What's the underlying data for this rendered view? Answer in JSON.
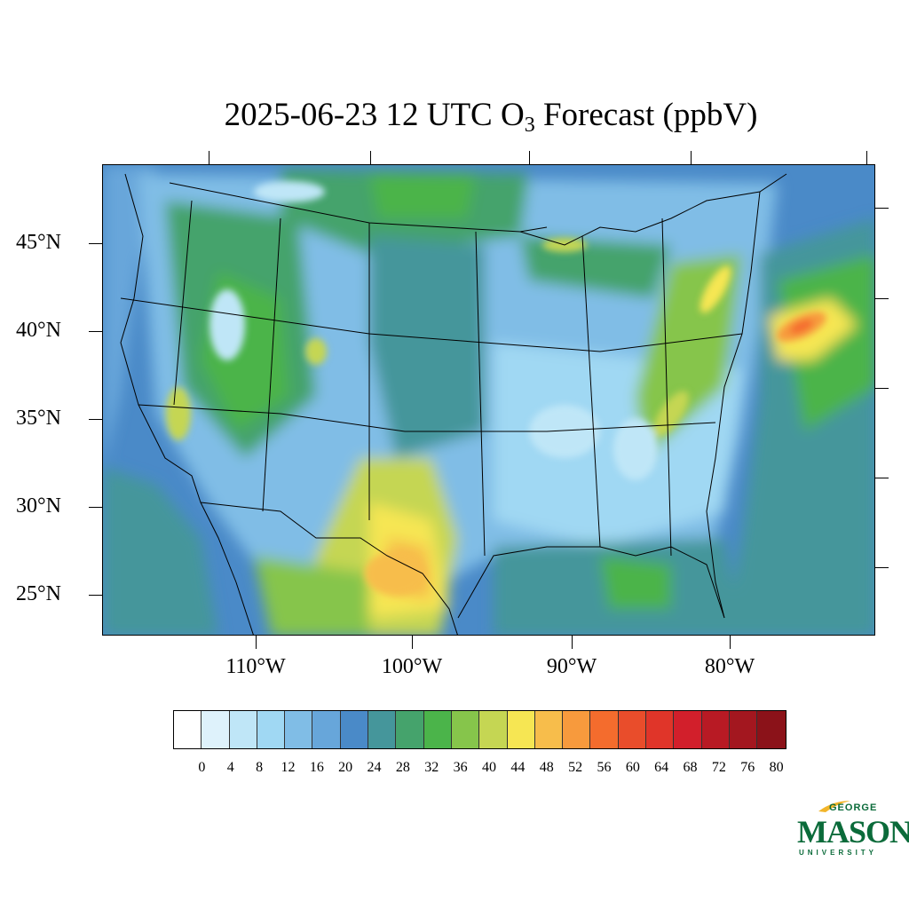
{
  "title": {
    "prefix": "2025-06-23 12 UTC O",
    "subscript": "3",
    "suffix": " Forecast (ppbV)"
  },
  "map": {
    "lat_labels": [
      "45°N",
      "40°N",
      "35°N",
      "30°N",
      "25°N"
    ],
    "lon_labels": [
      "110°W",
      "100°W",
      "90°W",
      "80°W"
    ]
  },
  "colorbar": {
    "labels": [
      "0",
      "4",
      "8",
      "12",
      "16",
      "20",
      "24",
      "28",
      "32",
      "36",
      "40",
      "44",
      "48",
      "52",
      "56",
      "60",
      "64",
      "68",
      "72",
      "76",
      "80"
    ],
    "colors": [
      "#ffffff",
      "#def2fb",
      "#bfe6f7",
      "#a0d8f3",
      "#80bde6",
      "#67a6da",
      "#4a8ac8",
      "#45969b",
      "#45a36c",
      "#4bb44a",
      "#86c54b",
      "#c5d653",
      "#f6e653",
      "#f7bd4b",
      "#f79a3d",
      "#f46c2d",
      "#e94d2b",
      "#e03529",
      "#d21f2b",
      "#b81a24",
      "#a3171f",
      "#8b1219"
    ]
  },
  "logo": {
    "line1": "GEORGE",
    "line2": "MASON",
    "line3": "UNIVERSITY",
    "color": "#0b6b3a"
  }
}
